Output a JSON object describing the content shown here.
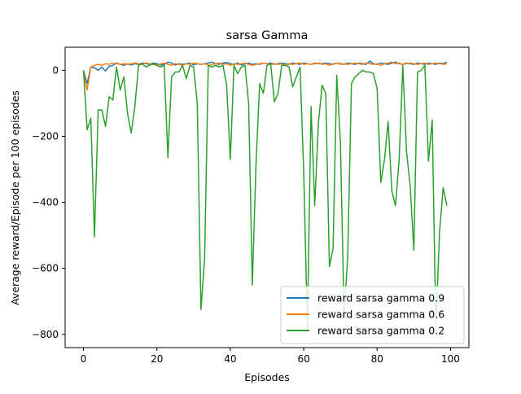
{
  "chart_data": {
    "type": "line",
    "title": "sarsa Gamma",
    "xlabel": "Episodes",
    "ylabel": "Average reward/Episode per 100 episodes",
    "xlim": [
      -5,
      105
    ],
    "ylim": [
      -840,
      70
    ],
    "xticks": [
      0,
      20,
      40,
      60,
      80,
      100
    ],
    "yticks": [
      0,
      -200,
      -400,
      -600,
      -800
    ],
    "xtick_labels": [
      "0",
      "20",
      "40",
      "60",
      "80",
      "100"
    ],
    "ytick_labels": [
      "0",
      "−200",
      "−400",
      "−600",
      "−800"
    ],
    "grid": false,
    "legend_position": "lower-right",
    "series": [
      {
        "name": "reward sarsa gamma 0.9",
        "color": "#1f77b4",
        "y": [
          0,
          -40,
          10,
          8,
          0,
          10,
          -2,
          12,
          15,
          22,
          18,
          15,
          20,
          16,
          20,
          18,
          22,
          20,
          18,
          22,
          20,
          16,
          18,
          25,
          22,
          16,
          20,
          18,
          20,
          22,
          16,
          20,
          18,
          20,
          22,
          25,
          20,
          18,
          22,
          24,
          20,
          18,
          22,
          16,
          20,
          22,
          18,
          20,
          18,
          22,
          20,
          22,
          18,
          20,
          22,
          20,
          18,
          22,
          20,
          18,
          22,
          20,
          18,
          22,
          20,
          20,
          22,
          20,
          18,
          22,
          20,
          18,
          22,
          20,
          18,
          22,
          20,
          18,
          28,
          20,
          18,
          22,
          20,
          18,
          22,
          25,
          20,
          18,
          22,
          20,
          18,
          22,
          20,
          18,
          22,
          20,
          18,
          22,
          20,
          25
        ]
      },
      {
        "name": "reward sarsa gamma 0.6",
        "color": "#ff7f0e",
        "y": [
          -5,
          -60,
          10,
          15,
          18,
          15,
          20,
          18,
          22,
          20,
          18,
          20,
          18,
          20,
          22,
          20,
          18,
          22,
          20,
          18,
          15,
          20,
          22,
          18,
          15,
          20,
          18,
          15,
          20,
          18,
          22,
          20,
          18,
          20,
          15,
          18,
          20,
          22,
          18,
          20,
          15,
          20,
          18,
          20,
          22,
          18,
          15,
          18,
          20,
          22,
          20,
          18,
          20,
          18,
          20,
          15,
          20,
          18,
          20,
          22,
          18,
          20,
          18,
          20,
          22,
          18,
          20,
          15,
          20,
          22,
          18,
          20,
          18,
          20,
          22,
          20,
          18,
          22,
          20,
          18,
          20,
          15,
          20,
          22,
          25,
          20,
          22,
          18,
          20,
          22,
          20,
          18,
          20,
          22,
          18,
          20,
          22,
          20,
          18,
          20
        ]
      },
      {
        "name": "reward sarsa gamma 0.2",
        "color": "#2ca02c",
        "y": [
          0,
          -180,
          -145,
          -505,
          -120,
          -120,
          -170,
          -80,
          -90,
          10,
          -60,
          -20,
          -130,
          -190,
          -110,
          15,
          20,
          10,
          15,
          20,
          15,
          10,
          15,
          -265,
          -20,
          -5,
          -5,
          15,
          -25,
          15,
          10,
          -100,
          -725,
          -570,
          15,
          10,
          15,
          10,
          15,
          -45,
          -270,
          15,
          -10,
          10,
          15,
          -100,
          -650,
          -285,
          -40,
          -70,
          15,
          20,
          -95,
          -70,
          15,
          15,
          10,
          -50,
          -20,
          10,
          -310,
          -780,
          -110,
          -410,
          -160,
          -45,
          -70,
          -595,
          -540,
          -15,
          -220,
          -745,
          -560,
          -40,
          -20,
          -10,
          0,
          -5,
          -5,
          -10,
          -55,
          -340,
          -270,
          -155,
          -365,
          -410,
          -270,
          15,
          -245,
          -350,
          -545,
          -5,
          0,
          15,
          -275,
          -150,
          -780,
          -490,
          -355,
          -410
        ]
      }
    ]
  }
}
